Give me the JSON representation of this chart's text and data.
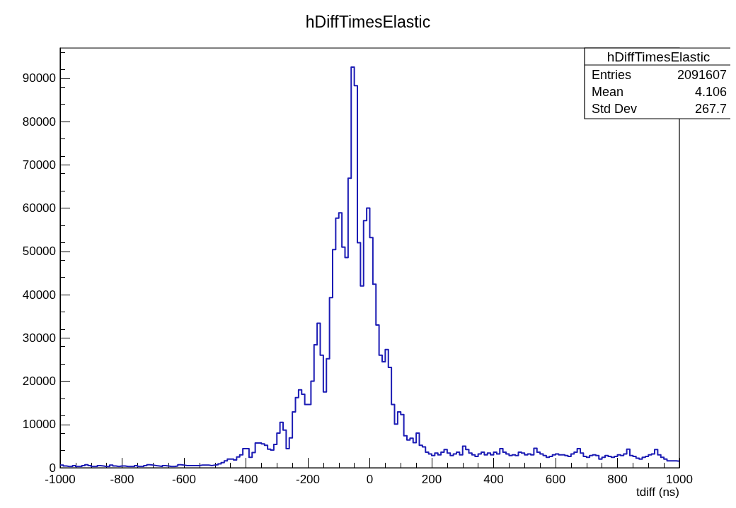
{
  "chart_data": {
    "type": "histogram",
    "title": "hDiffTimesElastic",
    "xlabel": "tdiff (ns)",
    "annotations": [
      "hDiffTimesElastic",
      "Entries 2091607",
      "Mean 4.106",
      "Std Dev 267.7"
    ],
    "color": "#1c1cb4",
    "bins": [
      -1000,
      -990,
      -980,
      -970,
      -960,
      -950,
      -940,
      -930,
      -920,
      -910,
      -900,
      -890,
      -880,
      -870,
      -860,
      -850,
      -840,
      -830,
      -820,
      -810,
      -800,
      -790,
      -780,
      -770,
      -760,
      -750,
      -740,
      -730,
      -720,
      -710,
      -700,
      -690,
      -680,
      -670,
      -660,
      -650,
      -640,
      -630,
      -620,
      -610,
      -600,
      -590,
      -580,
      -570,
      -560,
      -550,
      -540,
      -530,
      -520,
      -510,
      -500,
      -490,
      -480,
      -470,
      -460,
      -450,
      -440,
      -430,
      -420,
      -410,
      -400,
      -390,
      -380,
      -370,
      -360,
      -350,
      -340,
      -330,
      -320,
      -310,
      -300,
      -290,
      -280,
      -270,
      -260,
      -250,
      -240,
      -230,
      -220,
      -210,
      -200,
      -190,
      -180,
      -170,
      -160,
      -150,
      -140,
      -130,
      -120,
      -110,
      -100,
      -90,
      -80,
      -70,
      -60,
      -50,
      -40,
      -30,
      -20,
      -10,
      0,
      10,
      20,
      30,
      40,
      50,
      60,
      70,
      80,
      90,
      100,
      110,
      120,
      130,
      140,
      150,
      160,
      170,
      180,
      190,
      200,
      210,
      220,
      230,
      240,
      250,
      260,
      270,
      280,
      290,
      300,
      310,
      320,
      330,
      340,
      350,
      360,
      370,
      380,
      390,
      400,
      410,
      420,
      430,
      440,
      450,
      460,
      470,
      480,
      490,
      500,
      510,
      520,
      530,
      540,
      550,
      560,
      570,
      580,
      590,
      600,
      610,
      620,
      630,
      640,
      650,
      660,
      670,
      680,
      690,
      700,
      710,
      720,
      730,
      740,
      750,
      760,
      770,
      780,
      790,
      800,
      810,
      820,
      830,
      840,
      850,
      860,
      870,
      880,
      890,
      900,
      910,
      920,
      930,
      940,
      950,
      960,
      970,
      980,
      990,
      1000
    ],
    "values": [
      600,
      400,
      300,
      300,
      500,
      300,
      300,
      500,
      700,
      500,
      300,
      300,
      500,
      400,
      300,
      300,
      600,
      400,
      300,
      400,
      400,
      300,
      300,
      300,
      500,
      300,
      300,
      500,
      700,
      600,
      500,
      400,
      300,
      500,
      400,
      300,
      300,
      400,
      700,
      600,
      500,
      500,
      500,
      500,
      500,
      600,
      600,
      600,
      500,
      600,
      700,
      900,
      1200,
      1600,
      2000,
      2000,
      1800,
      2500,
      3000,
      4400,
      4400,
      2400,
      3500,
      5700,
      5700,
      5500,
      5200,
      4300,
      4100,
      5400,
      8000,
      10500,
      8700,
      4400,
      6900,
      12900,
      16200,
      18000,
      17000,
      14600,
      14600,
      20000,
      28400,
      33400,
      26000,
      17500,
      25200,
      39300,
      50400,
      57700,
      58900,
      51000,
      48600,
      66900,
      92600,
      88300,
      52000,
      42000,
      57100,
      60000,
      53200,
      42400,
      33000,
      26000,
      24500,
      27300,
      23200,
      14600,
      10100,
      12900,
      12300,
      7400,
      6400,
      6800,
      5800,
      8000,
      5200,
      4800,
      3600,
      3200,
      2800,
      3400,
      3000,
      3600,
      4200,
      3400,
      2800,
      3200,
      3600,
      3000,
      5000,
      4200,
      3400,
      3000,
      2600,
      3200,
      3600,
      3000,
      3400,
      3000,
      3600,
      3200,
      4400,
      3600,
      3200,
      2800,
      3000,
      2800,
      3600,
      3400,
      3000,
      3200,
      3000,
      4500,
      3600,
      3200,
      2800,
      2400,
      2600,
      3000,
      3200,
      3000,
      3000,
      2800,
      2600,
      3200,
      3600,
      4400,
      3400,
      2600,
      2400,
      2800,
      3000,
      2800,
      2000,
      2400,
      2800,
      2600,
      2400,
      2600,
      3000,
      2800,
      3200,
      4300,
      2800,
      2600,
      2200,
      2000,
      2400,
      2600,
      3000,
      3200,
      4200,
      3000,
      2400,
      2000,
      1600,
      1600,
      1600,
      1500
    ],
    "xlim": [
      -1000,
      1000
    ],
    "xticks": [
      -1000,
      -800,
      -600,
      -400,
      -200,
      0,
      200,
      400,
      600,
      800,
      1000
    ],
    "ylim": [
      0,
      97000
    ],
    "yticks": [
      0,
      10000,
      20000,
      30000,
      40000,
      50000,
      60000,
      70000,
      80000,
      90000
    ],
    "grid": false
  }
}
